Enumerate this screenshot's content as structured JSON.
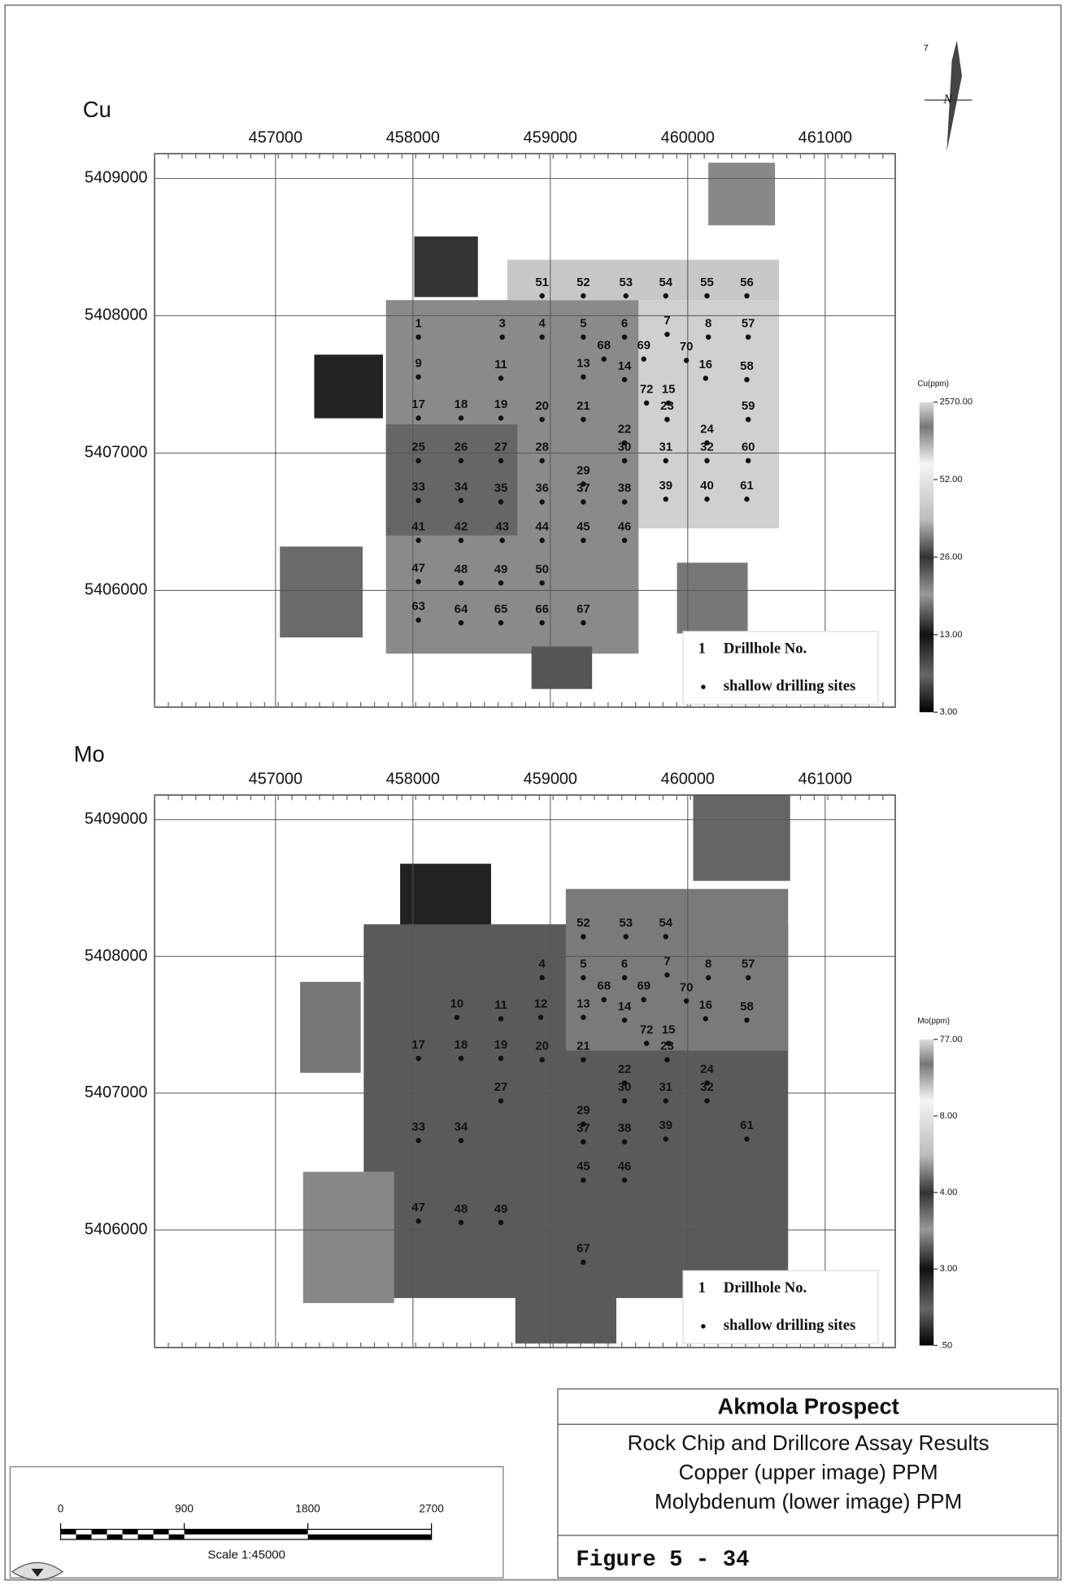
{
  "north_arrow": {
    "mark": "7",
    "label": "N"
  },
  "maps": [
    {
      "label": "Cu",
      "xlim": [
        456120,
        461510
      ],
      "ylim": [
        5405150,
        5409180
      ],
      "xticks": [
        457000,
        458000,
        459000,
        460000,
        461000
      ],
      "yticks": [
        5406000,
        5407000,
        5408000,
        5409000
      ],
      "legend": {
        "example": "1",
        "drillhole": "Drillhole No.",
        "sites": "shallow drilling sites"
      },
      "colorbar": {
        "title": "Cu(ppm)",
        "ticks": [
          {
            "value": 2570,
            "label": "2570.00"
          },
          {
            "value": 52,
            "label": "52.00"
          },
          {
            "value": 26,
            "label": "26.00"
          },
          {
            "value": 13,
            "label": "13.00"
          },
          {
            "value": 3,
            "label": "3.00"
          }
        ]
      },
      "drillholes": [
        {
          "label": "51",
          "x": 458940,
          "y": 5408240
        },
        {
          "label": "52",
          "x": 459240,
          "y": 5408240
        },
        {
          "label": "53",
          "x": 459550,
          "y": 5408240
        },
        {
          "label": "54",
          "x": 459840,
          "y": 5408240
        },
        {
          "label": "55",
          "x": 460140,
          "y": 5408240
        },
        {
          "label": "56",
          "x": 460430,
          "y": 5408240
        },
        {
          "label": "1",
          "x": 458040,
          "y": 5407940
        },
        {
          "label": "3",
          "x": 458650,
          "y": 5407940
        },
        {
          "label": "4",
          "x": 458940,
          "y": 5407940
        },
        {
          "label": "5",
          "x": 459240,
          "y": 5407940
        },
        {
          "label": "6",
          "x": 459540,
          "y": 5407940
        },
        {
          "label": "7",
          "x": 459850,
          "y": 5407960
        },
        {
          "label": "8",
          "x": 460150,
          "y": 5407940
        },
        {
          "label": "57",
          "x": 460440,
          "y": 5407940
        },
        {
          "label": "68",
          "x": 459390,
          "y": 5407780
        },
        {
          "label": "69",
          "x": 459680,
          "y": 5407780
        },
        {
          "label": "70",
          "x": 459990,
          "y": 5407770
        },
        {
          "label": "9",
          "x": 458040,
          "y": 5407650
        },
        {
          "label": "11",
          "x": 458640,
          "y": 5407640
        },
        {
          "label": "13",
          "x": 459240,
          "y": 5407650
        },
        {
          "label": "14",
          "x": 459540,
          "y": 5407630
        },
        {
          "label": "16",
          "x": 460130,
          "y": 5407640
        },
        {
          "label": "58",
          "x": 460430,
          "y": 5407630
        },
        {
          "label": "72",
          "x": 459700,
          "y": 5407460
        },
        {
          "label": "15",
          "x": 459860,
          "y": 5407460
        },
        {
          "label": "17",
          "x": 458040,
          "y": 5407350
        },
        {
          "label": "18",
          "x": 458350,
          "y": 5407350
        },
        {
          "label": "19",
          "x": 458640,
          "y": 5407350
        },
        {
          "label": "20",
          "x": 458940,
          "y": 5407340
        },
        {
          "label": "21",
          "x": 459240,
          "y": 5407340
        },
        {
          "label": "23",
          "x": 459850,
          "y": 5407340
        },
        {
          "label": "59",
          "x": 460440,
          "y": 5407340
        },
        {
          "label": "22",
          "x": 459540,
          "y": 5407170
        },
        {
          "label": "24",
          "x": 460140,
          "y": 5407170
        },
        {
          "label": "25",
          "x": 458040,
          "y": 5407040
        },
        {
          "label": "26",
          "x": 458350,
          "y": 5407040
        },
        {
          "label": "27",
          "x": 458640,
          "y": 5407040
        },
        {
          "label": "28",
          "x": 458940,
          "y": 5407040
        },
        {
          "label": "30",
          "x": 459540,
          "y": 5407040
        },
        {
          "label": "31",
          "x": 459840,
          "y": 5407040
        },
        {
          "label": "32",
          "x": 460140,
          "y": 5407040
        },
        {
          "label": "60",
          "x": 460440,
          "y": 5407040
        },
        {
          "label": "29",
          "x": 459240,
          "y": 5406870
        },
        {
          "label": "33",
          "x": 458040,
          "y": 5406750
        },
        {
          "label": "34",
          "x": 458350,
          "y": 5406750
        },
        {
          "label": "35",
          "x": 458640,
          "y": 5406740
        },
        {
          "label": "36",
          "x": 458940,
          "y": 5406740
        },
        {
          "label": "37",
          "x": 459240,
          "y": 5406740
        },
        {
          "label": "38",
          "x": 459540,
          "y": 5406740
        },
        {
          "label": "39",
          "x": 459840,
          "y": 5406760
        },
        {
          "label": "40",
          "x": 460140,
          "y": 5406760
        },
        {
          "label": "61",
          "x": 460430,
          "y": 5406760
        },
        {
          "label": "41",
          "x": 458040,
          "y": 5406460
        },
        {
          "label": "42",
          "x": 458350,
          "y": 5406460
        },
        {
          "label": "43",
          "x": 458650,
          "y": 5406460
        },
        {
          "label": "44",
          "x": 458940,
          "y": 5406460
        },
        {
          "label": "45",
          "x": 459240,
          "y": 5406460
        },
        {
          "label": "46",
          "x": 459540,
          "y": 5406460
        },
        {
          "label": "47",
          "x": 458040,
          "y": 5406160
        },
        {
          "label": "48",
          "x": 458350,
          "y": 5406150
        },
        {
          "label": "49",
          "x": 458640,
          "y": 5406150
        },
        {
          "label": "50",
          "x": 458940,
          "y": 5406150
        },
        {
          "label": "63",
          "x": 458040,
          "y": 5405880
        },
        {
          "label": "64",
          "x": 458350,
          "y": 5405860
        },
        {
          "label": "65",
          "x": 458640,
          "y": 5405860
        },
        {
          "label": "66",
          "x": 458940,
          "y": 5405860
        },
        {
          "label": "67",
          "x": 459240,
          "y": 5405860
        }
      ]
    },
    {
      "label": "Mo",
      "xlim": [
        456120,
        461510
      ],
      "ylim": [
        5405140,
        5409180
      ],
      "xticks": [
        457000,
        458000,
        459000,
        460000,
        461000
      ],
      "yticks": [
        5406000,
        5407000,
        5408000,
        5409000
      ],
      "legend": {
        "example": "1",
        "drillhole": "Drillhole No.",
        "sites": "shallow drilling sites"
      },
      "colorbar": {
        "title": "Mo(ppm)",
        "ticks": [
          {
            "value": 77,
            "label": "77.00"
          },
          {
            "value": 8,
            "label": "8.00"
          },
          {
            "value": 4,
            "label": "4.00"
          },
          {
            "value": 3,
            "label": "3.00"
          },
          {
            "value": 0.5,
            "label": ".50"
          }
        ]
      },
      "drillholes": [
        {
          "label": "52",
          "x": 459240,
          "y": 5408240
        },
        {
          "label": "53",
          "x": 459550,
          "y": 5408240
        },
        {
          "label": "54",
          "x": 459840,
          "y": 5408240
        },
        {
          "label": "4",
          "x": 458940,
          "y": 5407940
        },
        {
          "label": "5",
          "x": 459240,
          "y": 5407940
        },
        {
          "label": "6",
          "x": 459540,
          "y": 5407940
        },
        {
          "label": "7",
          "x": 459850,
          "y": 5407960
        },
        {
          "label": "8",
          "x": 460150,
          "y": 5407940
        },
        {
          "label": "57",
          "x": 460440,
          "y": 5407940
        },
        {
          "label": "68",
          "x": 459390,
          "y": 5407780
        },
        {
          "label": "69",
          "x": 459680,
          "y": 5407780
        },
        {
          "label": "70",
          "x": 459990,
          "y": 5407770
        },
        {
          "label": "10",
          "x": 458320,
          "y": 5407650
        },
        {
          "label": "11",
          "x": 458640,
          "y": 5407640
        },
        {
          "label": "12",
          "x": 458930,
          "y": 5407650
        },
        {
          "label": "13",
          "x": 459240,
          "y": 5407650
        },
        {
          "label": "14",
          "x": 459540,
          "y": 5407630
        },
        {
          "label": "16",
          "x": 460130,
          "y": 5407640
        },
        {
          "label": "58",
          "x": 460430,
          "y": 5407630
        },
        {
          "label": "72",
          "x": 459700,
          "y": 5407460
        },
        {
          "label": "15",
          "x": 459860,
          "y": 5407460
        },
        {
          "label": "17",
          "x": 458040,
          "y": 5407350
        },
        {
          "label": "18",
          "x": 458350,
          "y": 5407350
        },
        {
          "label": "19",
          "x": 458640,
          "y": 5407350
        },
        {
          "label": "20",
          "x": 458940,
          "y": 5407340
        },
        {
          "label": "21",
          "x": 459240,
          "y": 5407340
        },
        {
          "label": "23",
          "x": 459850,
          "y": 5407340
        },
        {
          "label": "22",
          "x": 459540,
          "y": 5407170
        },
        {
          "label": "24",
          "x": 460140,
          "y": 5407170
        },
        {
          "label": "27",
          "x": 458640,
          "y": 5407040
        },
        {
          "label": "30",
          "x": 459540,
          "y": 5407040
        },
        {
          "label": "31",
          "x": 459840,
          "y": 5407040
        },
        {
          "label": "32",
          "x": 460140,
          "y": 5407040
        },
        {
          "label": "29",
          "x": 459240,
          "y": 5406870
        },
        {
          "label": "33",
          "x": 458040,
          "y": 5406750
        },
        {
          "label": "34",
          "x": 458350,
          "y": 5406750
        },
        {
          "label": "37",
          "x": 459240,
          "y": 5406740
        },
        {
          "label": "38",
          "x": 459540,
          "y": 5406740
        },
        {
          "label": "39",
          "x": 459840,
          "y": 5406760
        },
        {
          "label": "61",
          "x": 460430,
          "y": 5406760
        },
        {
          "label": "45",
          "x": 459240,
          "y": 5406460
        },
        {
          "label": "46",
          "x": 459540,
          "y": 5406460
        },
        {
          "label": "47",
          "x": 458040,
          "y": 5406160
        },
        {
          "label": "48",
          "x": 458350,
          "y": 5406150
        },
        {
          "label": "49",
          "x": 458640,
          "y": 5406150
        },
        {
          "label": "67",
          "x": 459240,
          "y": 5405860
        }
      ]
    }
  ],
  "title_block": {
    "title": "Akmola Prospect",
    "lines": [
      "Rock Chip and Drillcore Assay Results",
      "Copper (upper image) PPM",
      "Molybdenum (lower image) PPM"
    ],
    "figure": "Figure 5 - 34"
  },
  "scale_bar": {
    "ticks": [
      0,
      900,
      1800,
      2700
    ],
    "label": "Scale 1:45000"
  }
}
